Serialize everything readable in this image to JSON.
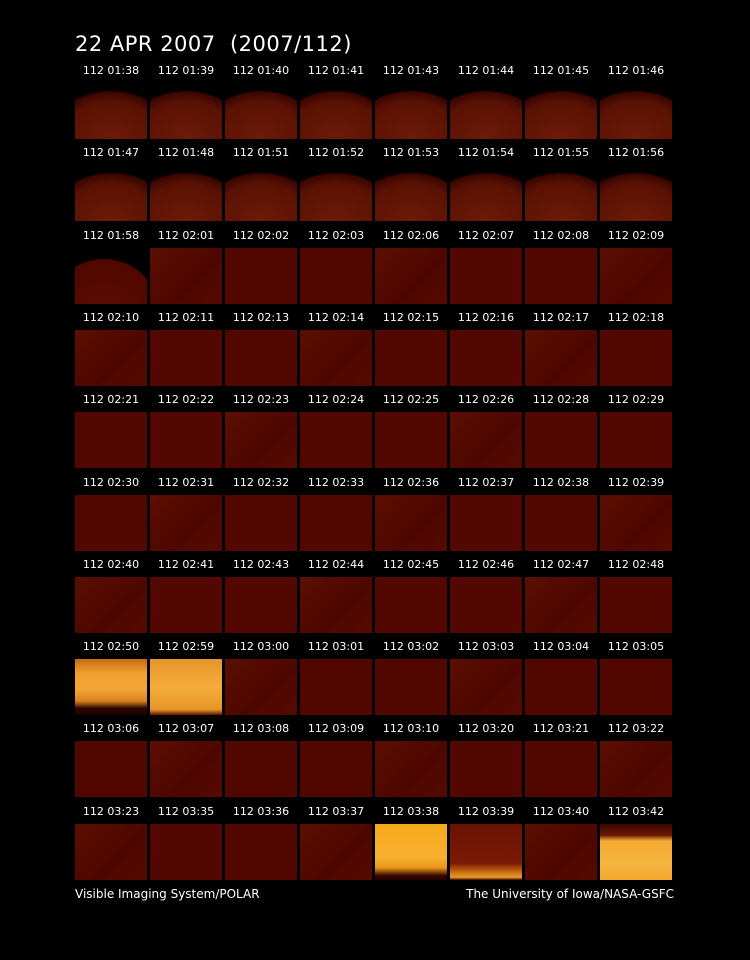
{
  "title": "22 APR 2007  (2007/112)",
  "frames": [
    [
      "112 01:38",
      "112 01:39",
      "112 01:40",
      "112 01:41",
      "112 01:43",
      "112 01:44",
      "112 01:45",
      "112 01:46"
    ],
    [
      "112 01:47",
      "112 01:48",
      "112 01:51",
      "112 01:52",
      "112 01:53",
      "112 01:54",
      "112 01:55",
      "112 01:56"
    ],
    [
      "112 01:58",
      "112 02:01",
      "112 02:02",
      "112 02:03",
      "112 02:06",
      "112 02:07",
      "112 02:08",
      "112 02:09"
    ],
    [
      "112 02:10",
      "112 02:11",
      "112 02:13",
      "112 02:14",
      "112 02:15",
      "112 02:16",
      "112 02:17",
      "112 02:18"
    ],
    [
      "112 02:21",
      "112 02:22",
      "112 02:23",
      "112 02:24",
      "112 02:25",
      "112 02:26",
      "112 02:28",
      "112 02:29"
    ],
    [
      "112 02:30",
      "112 02:31",
      "112 02:32",
      "112 02:33",
      "112 02:36",
      "112 02:37",
      "112 02:38",
      "112 02:39"
    ],
    [
      "112 02:40",
      "112 02:41",
      "112 02:43",
      "112 02:44",
      "112 02:45",
      "112 02:46",
      "112 02:47",
      "112 02:48"
    ],
    [
      "112 02:50",
      "112 02:59",
      "112 03:00",
      "112 03:01",
      "112 03:02",
      "112 03:03",
      "112 03:04",
      "112 03:05"
    ],
    [
      "112 03:06",
      "112 03:07",
      "112 03:08",
      "112 03:09",
      "112 03:10",
      "112 03:20",
      "112 03:21",
      "112 03:22"
    ],
    [
      "112 03:23",
      "112 03:35",
      "112 03:36",
      "112 03:37",
      "112 03:38",
      "112 03:39",
      "112 03:40",
      "112 03:42"
    ]
  ],
  "footer": {
    "left": "Visible Imaging System/POLAR",
    "right": "The University of Iowa/NASA-GSFC"
  }
}
